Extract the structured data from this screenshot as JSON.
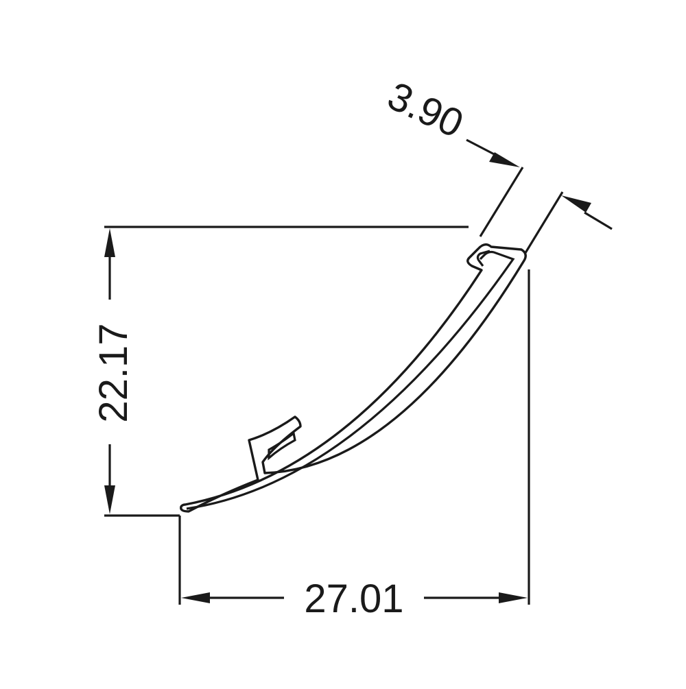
{
  "drawing": {
    "dimensions": {
      "height_label": "22.17",
      "width_label": "27.01",
      "thickness_label": "3.90"
    },
    "line_color": "#1a1a1a",
    "background_color": "#ffffff"
  }
}
